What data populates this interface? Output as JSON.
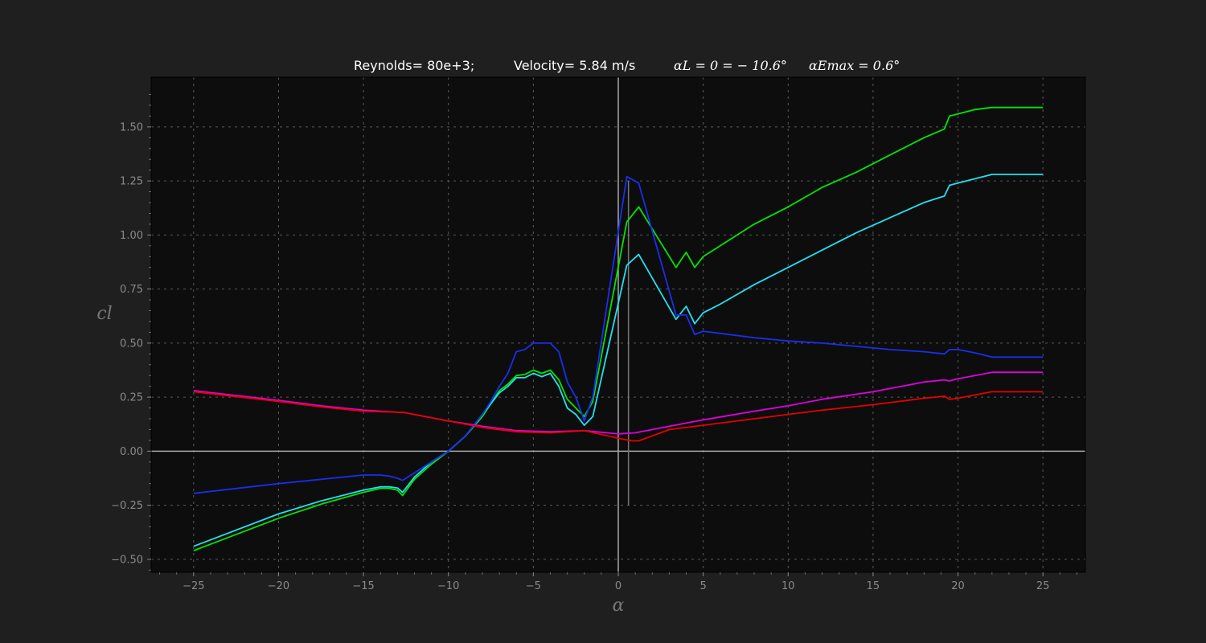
{
  "title": {
    "reynolds": "Reynolds= 80e+3;",
    "velocity": "Velocity= 5.84 m/s",
    "alpha_l0": "αL = 0 = − 10.6°",
    "alpha_emax": "αEmax = 0.6°"
  },
  "chart_data": {
    "type": "line",
    "xlabel": "α",
    "ylabel": "cl",
    "xlim": [
      -27.5,
      27.5
    ],
    "ylim": [
      -0.56,
      1.73
    ],
    "xticks": [
      -25,
      -20,
      -15,
      -10,
      -5,
      0,
      5,
      10,
      15,
      20,
      25
    ],
    "xtick_labels": [
      "−25",
      "−20",
      "−15",
      "−10",
      "−5",
      "0",
      "5",
      "10",
      "15",
      "20",
      "25"
    ],
    "yticks": [
      -0.5,
      -0.25,
      0.0,
      0.25,
      0.5,
      0.75,
      1.0,
      1.25,
      1.5
    ],
    "ytick_labels": [
      "−0.50",
      "−0.25",
      "0.00",
      "0.25",
      "0.50",
      "0.75",
      "1.00",
      "1.25",
      "1.50"
    ],
    "grid": true,
    "reference_lines": {
      "alpha_zero_x": 0,
      "cl_zero_y": 0,
      "alpha_emax_x": 0.6,
      "alpha_emax_ymin": -0.25,
      "alpha_emax_ymax": 1.25
    },
    "series": [
      {
        "color": "#00e600",
        "points": [
          [
            -25,
            -0.46
          ],
          [
            -20,
            -0.31
          ],
          [
            -17.5,
            -0.245
          ],
          [
            -15,
            -0.19
          ],
          [
            -14,
            -0.172
          ],
          [
            -13.5,
            -0.172
          ],
          [
            -13,
            -0.18
          ],
          [
            -12.7,
            -0.205
          ],
          [
            -12,
            -0.13
          ],
          [
            -11,
            -0.06
          ],
          [
            -10,
            0.0
          ],
          [
            -9,
            0.07
          ],
          [
            -8,
            0.16
          ],
          [
            -7.5,
            0.22
          ],
          [
            -7,
            0.28
          ],
          [
            -6.5,
            0.31
          ],
          [
            -6,
            0.35
          ],
          [
            -5.5,
            0.355
          ],
          [
            -5,
            0.375
          ],
          [
            -4.5,
            0.36
          ],
          [
            -4,
            0.375
          ],
          [
            -3.5,
            0.33
          ],
          [
            -3,
            0.24
          ],
          [
            -2.5,
            0.2
          ],
          [
            -2,
            0.16
          ],
          [
            -1.5,
            0.23
          ],
          [
            0.5,
            1.06
          ],
          [
            1.2,
            1.13
          ],
          [
            3.4,
            0.85
          ],
          [
            4,
            0.92
          ],
          [
            4.5,
            0.85
          ],
          [
            5,
            0.9
          ],
          [
            6,
            0.95
          ],
          [
            8,
            1.05
          ],
          [
            10,
            1.13
          ],
          [
            12,
            1.22
          ],
          [
            14,
            1.29
          ],
          [
            16,
            1.37
          ],
          [
            18,
            1.45
          ],
          [
            19.2,
            1.49
          ],
          [
            19.5,
            1.55
          ],
          [
            20,
            1.56
          ],
          [
            21,
            1.58
          ],
          [
            22,
            1.59
          ],
          [
            25,
            1.59
          ]
        ]
      },
      {
        "color": "#22e0f0",
        "points": [
          [
            -25,
            -0.44
          ],
          [
            -20,
            -0.29
          ],
          [
            -17.5,
            -0.23
          ],
          [
            -15,
            -0.18
          ],
          [
            -14,
            -0.165
          ],
          [
            -13.5,
            -0.165
          ],
          [
            -13,
            -0.17
          ],
          [
            -12.7,
            -0.19
          ],
          [
            -12,
            -0.12
          ],
          [
            -11,
            -0.05
          ],
          [
            -10,
            0.0
          ],
          [
            -9,
            0.07
          ],
          [
            -8,
            0.17
          ],
          [
            -7.5,
            0.22
          ],
          [
            -7,
            0.27
          ],
          [
            -6.5,
            0.3
          ],
          [
            -6,
            0.34
          ],
          [
            -5.5,
            0.34
          ],
          [
            -5,
            0.36
          ],
          [
            -4.5,
            0.345
          ],
          [
            -4,
            0.36
          ],
          [
            -3.5,
            0.3
          ],
          [
            -3,
            0.2
          ],
          [
            -2.5,
            0.17
          ],
          [
            -2,
            0.12
          ],
          [
            -1.5,
            0.16
          ],
          [
            0.5,
            0.86
          ],
          [
            1.2,
            0.91
          ],
          [
            3.4,
            0.61
          ],
          [
            4,
            0.67
          ],
          [
            4.5,
            0.59
          ],
          [
            5,
            0.64
          ],
          [
            6,
            0.68
          ],
          [
            8,
            0.77
          ],
          [
            10,
            0.85
          ],
          [
            12,
            0.93
          ],
          [
            14,
            1.01
          ],
          [
            16,
            1.08
          ],
          [
            18,
            1.15
          ],
          [
            19.2,
            1.18
          ],
          [
            19.5,
            1.23
          ],
          [
            20,
            1.24
          ],
          [
            21,
            1.26
          ],
          [
            22,
            1.28
          ],
          [
            25,
            1.28
          ]
        ]
      },
      {
        "color": "#1a2ef0",
        "points": [
          [
            -25,
            -0.195
          ],
          [
            -20,
            -0.15
          ],
          [
            -15,
            -0.11
          ],
          [
            -14,
            -0.11
          ],
          [
            -13.5,
            -0.115
          ],
          [
            -13,
            -0.125
          ],
          [
            -12.7,
            -0.135
          ],
          [
            -12,
            -0.1
          ],
          [
            -11,
            -0.05
          ],
          [
            -10,
            0.0
          ],
          [
            -9,
            0.07
          ],
          [
            -8,
            0.17
          ],
          [
            -7.5,
            0.23
          ],
          [
            -7,
            0.3
          ],
          [
            -6.5,
            0.36
          ],
          [
            -6,
            0.46
          ],
          [
            -5.5,
            0.47
          ],
          [
            -5,
            0.5
          ],
          [
            -4.5,
            0.5
          ],
          [
            -4,
            0.5
          ],
          [
            -3.5,
            0.46
          ],
          [
            -3,
            0.32
          ],
          [
            -2.5,
            0.25
          ],
          [
            -2,
            0.14
          ],
          [
            -1.5,
            0.25
          ],
          [
            0.5,
            1.27
          ],
          [
            1.2,
            1.24
          ],
          [
            3.4,
            0.63
          ],
          [
            4,
            0.63
          ],
          [
            4.5,
            0.54
          ],
          [
            5,
            0.555
          ],
          [
            6,
            0.545
          ],
          [
            8,
            0.525
          ],
          [
            10,
            0.51
          ],
          [
            12,
            0.5
          ],
          [
            14,
            0.485
          ],
          [
            16,
            0.47
          ],
          [
            18,
            0.46
          ],
          [
            19.2,
            0.45
          ],
          [
            19.5,
            0.47
          ],
          [
            20,
            0.47
          ],
          [
            21,
            0.455
          ],
          [
            22,
            0.435
          ],
          [
            25,
            0.435
          ]
        ]
      },
      {
        "color": "#e000e0",
        "points": [
          [
            -25,
            0.28
          ],
          [
            -20,
            0.235
          ],
          [
            -17.5,
            0.21
          ],
          [
            -15,
            0.19
          ],
          [
            -13,
            0.18
          ],
          [
            -12.7,
            0.18
          ],
          [
            -10,
            0.14
          ],
          [
            -8,
            0.115
          ],
          [
            -6,
            0.095
          ],
          [
            -4,
            0.09
          ],
          [
            -2,
            0.095
          ],
          [
            0,
            0.08
          ],
          [
            1,
            0.085
          ],
          [
            3,
            0.115
          ],
          [
            5,
            0.145
          ],
          [
            8,
            0.185
          ],
          [
            10,
            0.21
          ],
          [
            12,
            0.24
          ],
          [
            15,
            0.275
          ],
          [
            18,
            0.32
          ],
          [
            19.2,
            0.33
          ],
          [
            19.5,
            0.325
          ],
          [
            20,
            0.335
          ],
          [
            21,
            0.35
          ],
          [
            22,
            0.365
          ],
          [
            25,
            0.365
          ]
        ]
      },
      {
        "color": "#e60000",
        "points": [
          [
            -25,
            0.275
          ],
          [
            -20,
            0.23
          ],
          [
            -17.5,
            0.205
          ],
          [
            -15,
            0.185
          ],
          [
            -13,
            0.18
          ],
          [
            -12.7,
            0.18
          ],
          [
            -10,
            0.14
          ],
          [
            -8,
            0.11
          ],
          [
            -6,
            0.09
          ],
          [
            -4,
            0.085
          ],
          [
            -2,
            0.095
          ],
          [
            0,
            0.06
          ],
          [
            0.8,
            0.048
          ],
          [
            1.2,
            0.048
          ],
          [
            3,
            0.1
          ],
          [
            5,
            0.12
          ],
          [
            8,
            0.15
          ],
          [
            10,
            0.17
          ],
          [
            12,
            0.19
          ],
          [
            15,
            0.215
          ],
          [
            18,
            0.245
          ],
          [
            19.2,
            0.255
          ],
          [
            19.5,
            0.24
          ],
          [
            20,
            0.245
          ],
          [
            21,
            0.26
          ],
          [
            22,
            0.275
          ],
          [
            25,
            0.275
          ]
        ]
      }
    ]
  }
}
